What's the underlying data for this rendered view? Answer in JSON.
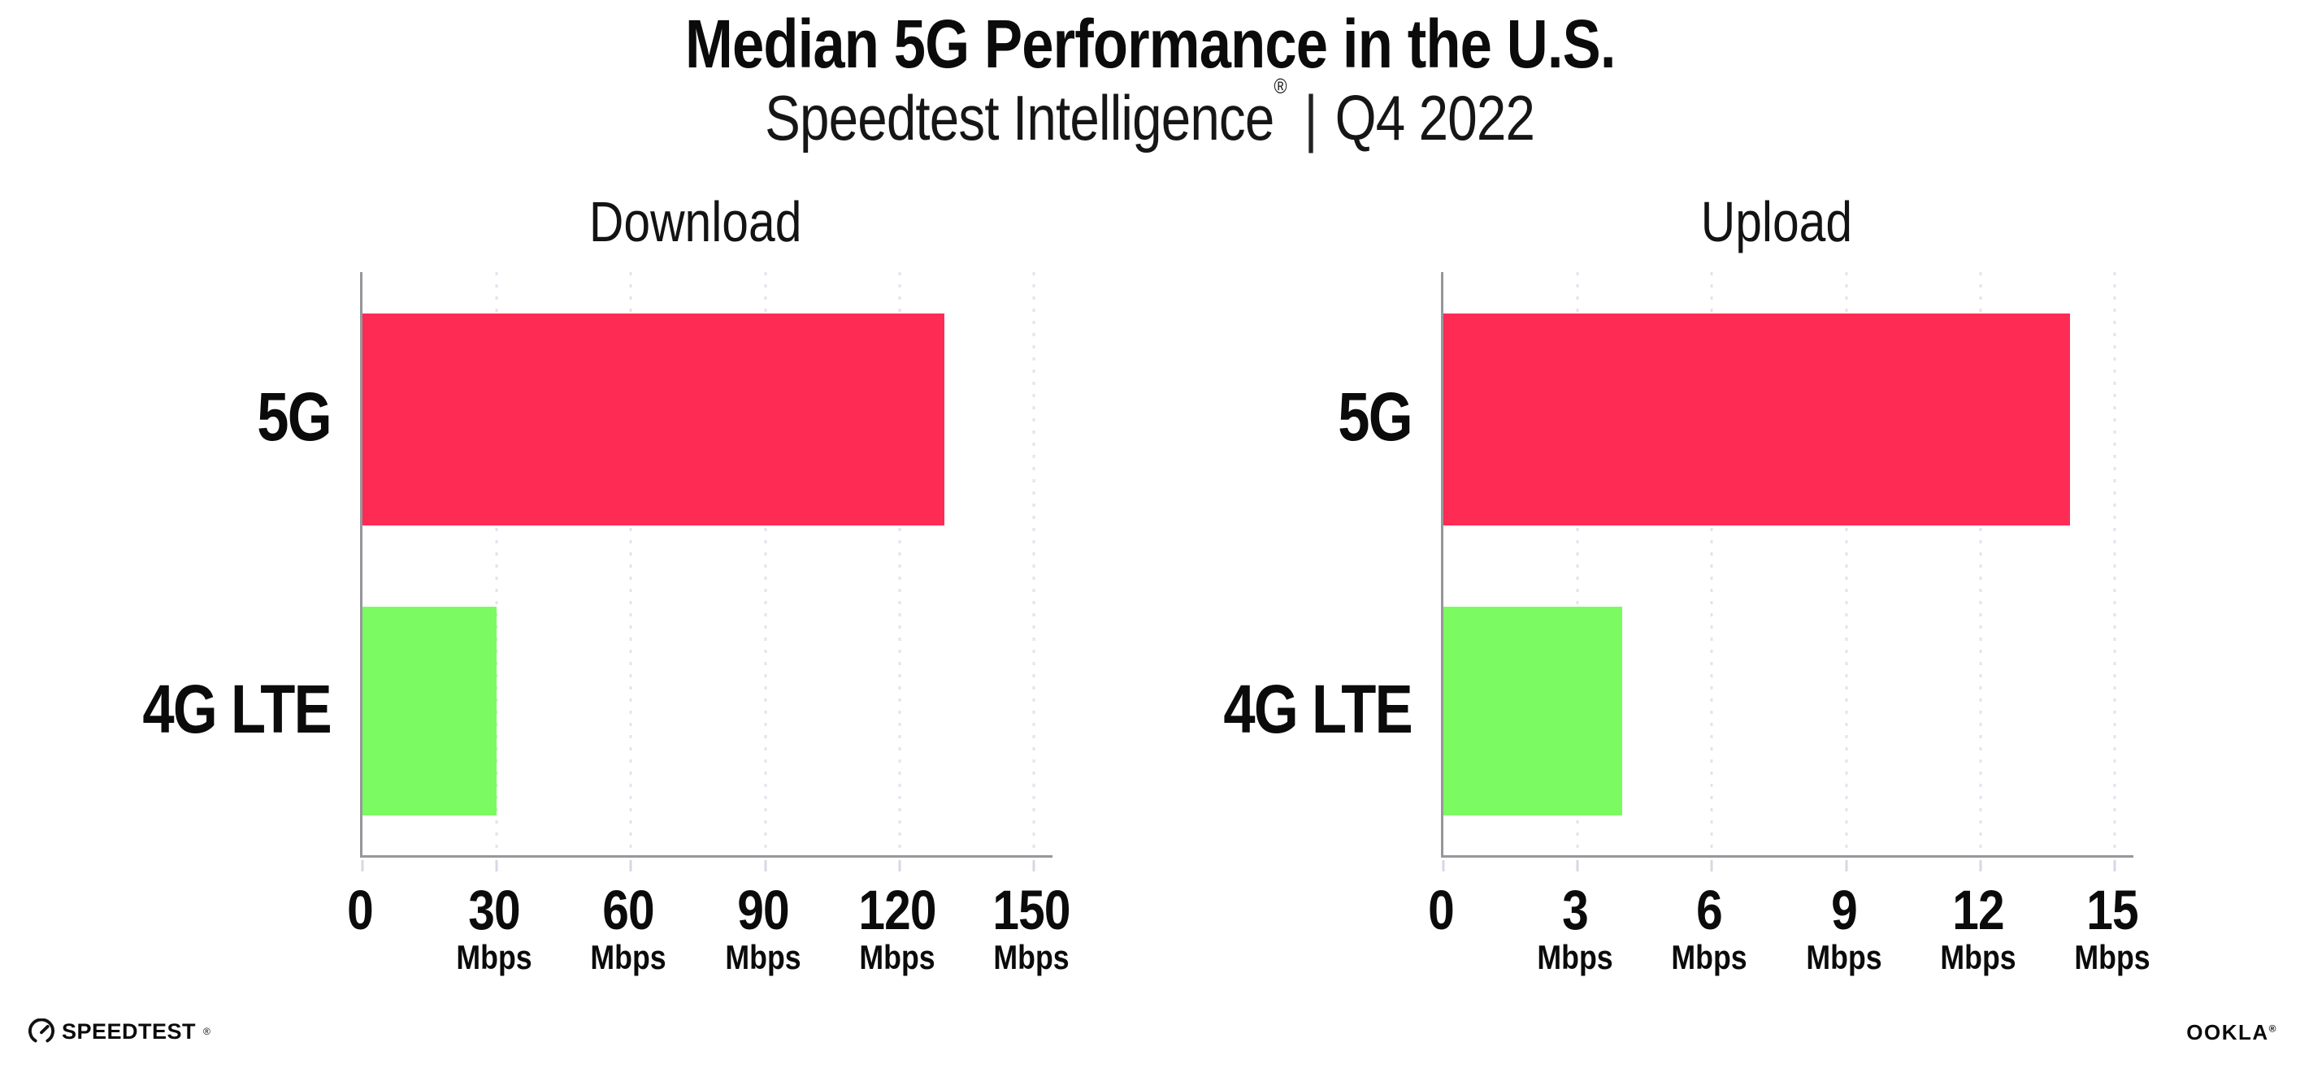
{
  "header": {
    "title": "Median 5G Performance in the U.S.",
    "subtitle_brand": "Speedtest Intelligence",
    "subtitle_registered": "®",
    "subtitle_divider": "|",
    "subtitle_period": "Q4 2022"
  },
  "colors": {
    "bar_5g": "#FE2C55",
    "bar_4g_lte": "#7CFA61",
    "gridline": "#E3E3EF",
    "axis": "#97979B",
    "tick": "#D7D7E4",
    "text": "#0B0B0B"
  },
  "chart_data": [
    {
      "type": "bar",
      "orientation": "horizontal",
      "title": "Download",
      "categories": [
        "5G",
        "4G LTE"
      ],
      "values": [
        130,
        30
      ],
      "unit": "Mbps",
      "xlabel": "",
      "ylabel": "",
      "xlim": [
        0,
        150
      ],
      "xticks": [
        0,
        30,
        60,
        90,
        120,
        150
      ],
      "grid": "vertical dotted",
      "legend": "none"
    },
    {
      "type": "bar",
      "orientation": "horizontal",
      "title": "Upload",
      "categories": [
        "5G",
        "4G LTE"
      ],
      "values": [
        14,
        4
      ],
      "unit": "Mbps",
      "xlabel": "",
      "ylabel": "",
      "xlim": [
        0,
        15
      ],
      "xticks": [
        0,
        3,
        6,
        9,
        12,
        15
      ],
      "grid": "vertical dotted",
      "legend": "none"
    }
  ],
  "footer": {
    "speedtest_text": "SPEEDTEST",
    "speedtest_mark": "®",
    "ookla_text": "OOKLA",
    "ookla_mark": "®"
  }
}
